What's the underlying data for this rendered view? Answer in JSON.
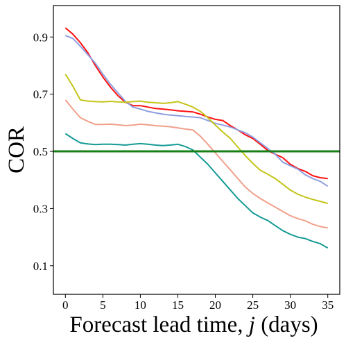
{
  "chart_data": {
    "type": "line",
    "title": "",
    "xlabel_prefix": "Forecast lead time, ",
    "xlabel_var": "j",
    "xlabel_suffix": " (days)",
    "ylabel": "COR",
    "xlim": [
      -1.6,
      36.6
    ],
    "ylim": [
      0.0,
      1.01
    ],
    "xticks": [
      0,
      5,
      10,
      15,
      20,
      25,
      30,
      35
    ],
    "yticks": [
      0.1,
      0.3,
      0.5,
      0.7,
      0.9
    ],
    "ytick_labels": [
      "0.1",
      "0.3",
      "0.5",
      "0.7",
      "0.9"
    ],
    "grid": false,
    "x": [
      0,
      1,
      2,
      3,
      4,
      5,
      6,
      7,
      8,
      9,
      10,
      11,
      12,
      13,
      14,
      15,
      16,
      17,
      18,
      19,
      20,
      21,
      22,
      23,
      24,
      25,
      26,
      27,
      28,
      29,
      30,
      31,
      32,
      33,
      34,
      35
    ],
    "hline": {
      "y": 0.5,
      "color": "#168016"
    },
    "series": [
      {
        "color": "#ff1010",
        "values": [
          0.932,
          0.91,
          0.88,
          0.845,
          0.8,
          0.76,
          0.725,
          0.695,
          0.672,
          0.66,
          0.66,
          0.655,
          0.65,
          0.648,
          0.645,
          0.642,
          0.64,
          0.638,
          0.63,
          0.62,
          0.612,
          0.608,
          0.59,
          0.575,
          0.558,
          0.545,
          0.525,
          0.503,
          0.49,
          0.478,
          0.455,
          0.44,
          0.43,
          0.415,
          0.408,
          0.405
        ]
      },
      {
        "color": "#8f9ee0",
        "values": [
          0.905,
          0.895,
          0.868,
          0.838,
          0.808,
          0.77,
          0.735,
          0.705,
          0.675,
          0.655,
          0.648,
          0.64,
          0.635,
          0.63,
          0.627,
          0.625,
          0.622,
          0.62,
          0.618,
          0.608,
          0.598,
          0.592,
          0.585,
          0.575,
          0.565,
          0.55,
          0.53,
          0.51,
          0.49,
          0.462,
          0.45,
          0.438,
          0.418,
          0.405,
          0.395,
          0.378
        ]
      },
      {
        "color": "#c4c41a",
        "values": [
          0.77,
          0.728,
          0.68,
          0.676,
          0.674,
          0.673,
          0.675,
          0.673,
          0.672,
          0.674,
          0.676,
          0.672,
          0.67,
          0.668,
          0.67,
          0.674,
          0.665,
          0.655,
          0.64,
          0.618,
          0.592,
          0.568,
          0.545,
          0.515,
          0.485,
          0.458,
          0.434,
          0.42,
          0.405,
          0.385,
          0.365,
          0.35,
          0.34,
          0.332,
          0.325,
          0.318
        ]
      },
      {
        "color": "#f0a08a",
        "values": [
          0.68,
          0.648,
          0.618,
          0.605,
          0.594,
          0.594,
          0.595,
          0.593,
          0.59,
          0.592,
          0.595,
          0.593,
          0.59,
          0.588,
          0.586,
          0.582,
          0.578,
          0.575,
          0.553,
          0.525,
          0.495,
          0.465,
          0.435,
          0.405,
          0.375,
          0.353,
          0.335,
          0.32,
          0.305,
          0.29,
          0.275,
          0.265,
          0.257,
          0.245,
          0.237,
          0.232
        ]
      },
      {
        "color": "#159a94",
        "values": [
          0.562,
          0.545,
          0.53,
          0.526,
          0.524,
          0.525,
          0.525,
          0.524,
          0.522,
          0.525,
          0.527,
          0.525,
          0.522,
          0.52,
          0.522,
          0.525,
          0.517,
          0.505,
          0.48,
          0.455,
          0.425,
          0.395,
          0.365,
          0.335,
          0.31,
          0.285,
          0.27,
          0.258,
          0.24,
          0.223,
          0.21,
          0.2,
          0.195,
          0.185,
          0.177,
          0.162
        ]
      }
    ]
  }
}
